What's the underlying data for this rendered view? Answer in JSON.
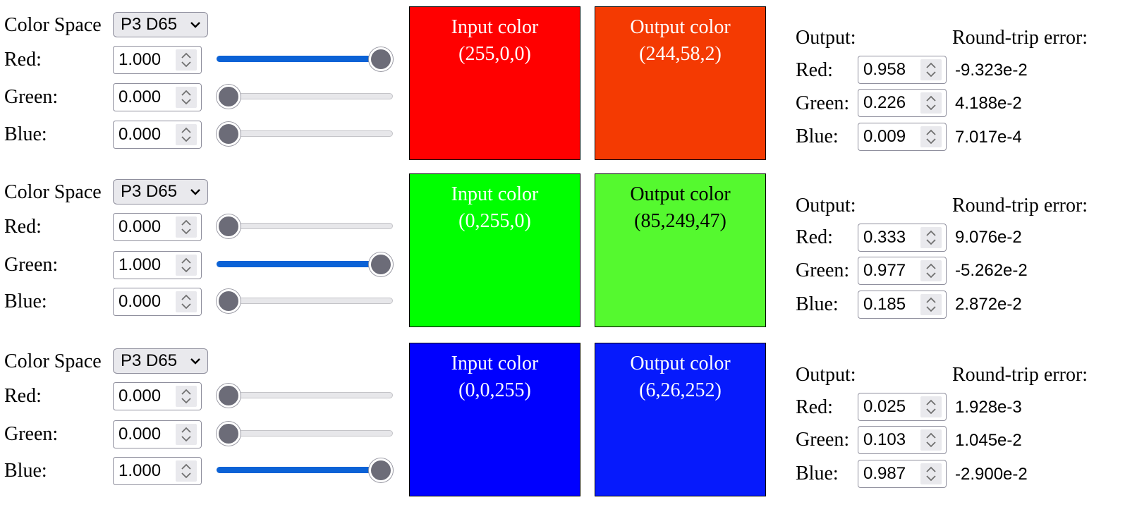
{
  "labels": {
    "color_space": "Color Space",
    "red": "Red:",
    "green": "Green:",
    "blue": "Blue:",
    "input_color": "Input color",
    "output_color": "Output color",
    "output": "Output:",
    "round_trip_error": "Round-trip error:"
  },
  "rows": [
    {
      "color_space": "P3 D65",
      "inputs": {
        "red": "1.000",
        "green": "0.000",
        "blue": "0.000"
      },
      "slider_levels": {
        "red": 1.0,
        "green": 0.0,
        "blue": 0.0
      },
      "input_swatch": {
        "rgb": "(255,0,0)",
        "color": "#ff0000"
      },
      "output_swatch": {
        "rgb": "(244,58,2)",
        "color": "#f43a02"
      },
      "outputs": {
        "red": "0.958",
        "green": "0.226",
        "blue": "0.009"
      },
      "errors": {
        "red": "-9.323e-2",
        "green": "4.188e-2",
        "blue": "7.017e-4"
      }
    },
    {
      "color_space": "P3 D65",
      "inputs": {
        "red": "0.000",
        "green": "1.000",
        "blue": "0.000"
      },
      "slider_levels": {
        "red": 0.0,
        "green": 1.0,
        "blue": 0.0
      },
      "input_swatch": {
        "rgb": "(0,255,0)",
        "color": "#00ff00"
      },
      "output_swatch": {
        "rgb": "(85,249,47)",
        "color": "#55f92f"
      },
      "outputs": {
        "red": "0.333",
        "green": "0.977",
        "blue": "0.185"
      },
      "errors": {
        "red": "9.076e-2",
        "green": "-5.262e-2",
        "blue": "2.872e-2"
      }
    },
    {
      "color_space": "P3 D65",
      "inputs": {
        "red": "0.000",
        "green": "0.000",
        "blue": "1.000"
      },
      "slider_levels": {
        "red": 0.0,
        "green": 0.0,
        "blue": 1.0
      },
      "input_swatch": {
        "rgb": "(0,0,255)",
        "color": "#0000ff"
      },
      "output_swatch": {
        "rgb": "(6,26,252)",
        "color": "#061afc"
      },
      "outputs": {
        "red": "0.025",
        "green": "0.103",
        "blue": "0.987"
      },
      "errors": {
        "red": "1.928e-3",
        "green": "1.045e-2",
        "blue": "-2.900e-2"
      }
    }
  ],
  "theme": {
    "slider_fill": "#0b62d6",
    "slider_thumb": "#6c6c78"
  }
}
